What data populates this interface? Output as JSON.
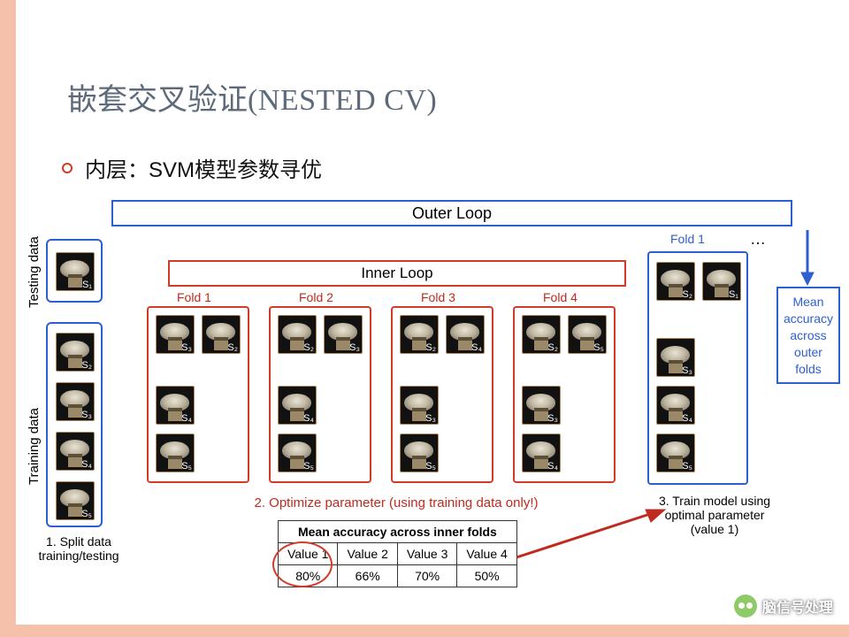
{
  "title": {
    "zh": "嵌套交叉验证",
    "en": "(NESTED CV)"
  },
  "bullet": "内层：SVM模型参数寻优",
  "diagram": {
    "outer_loop_label": "Outer Loop",
    "inner_loop_label": "Inner Loop",
    "testing_label": "Testing data",
    "training_label": "Training data",
    "fold_labels": [
      "Fold 1",
      "Fold 2",
      "Fold 3",
      "Fold 4"
    ],
    "outer_fold_label": "Fold 1",
    "ellipsis": "…",
    "left_subjects": {
      "test": [
        "S₁"
      ],
      "train": [
        "S₂",
        "S₃",
        "S₄",
        "S₅"
      ]
    },
    "inner_folds": [
      {
        "top": [
          "S₃",
          "S₂"
        ],
        "col": [
          "S₄",
          "S₅"
        ]
      },
      {
        "top": [
          "S₂",
          "S₃"
        ],
        "col": [
          "S₄",
          "S₅"
        ]
      },
      {
        "top": [
          "S₂",
          "S₄"
        ],
        "col": [
          "S₃",
          "S₅"
        ]
      },
      {
        "top": [
          "S₂",
          "S₅"
        ],
        "col": [
          "S₃",
          "S₄"
        ]
      }
    ],
    "outer_fold1": {
      "top": [
        "S₂",
        "S₁"
      ],
      "col": [
        "S₃",
        "S₄",
        "S₅"
      ]
    },
    "caption1": "1. Split data\ntraining/testing",
    "caption2": "2. Optimize parameter (using training data only!)",
    "caption3": "3. Train model using\noptimal parameter\n(value 1)",
    "table": {
      "header": "Mean accuracy across inner folds",
      "cols": [
        "Value 1",
        "Value 2",
        "Value 3",
        "Value 4"
      ],
      "vals": [
        "80%",
        "66%",
        "70%",
        "50%"
      ]
    },
    "mean_box": "Mean\naccuracy\nacross\nouter\nfolds",
    "colors": {
      "outer": "#2e5fd0",
      "inner": "#d23a2a",
      "frame": "#f6c1ab",
      "title": "#5d6a7a"
    }
  },
  "watermark": "脑信号处理"
}
